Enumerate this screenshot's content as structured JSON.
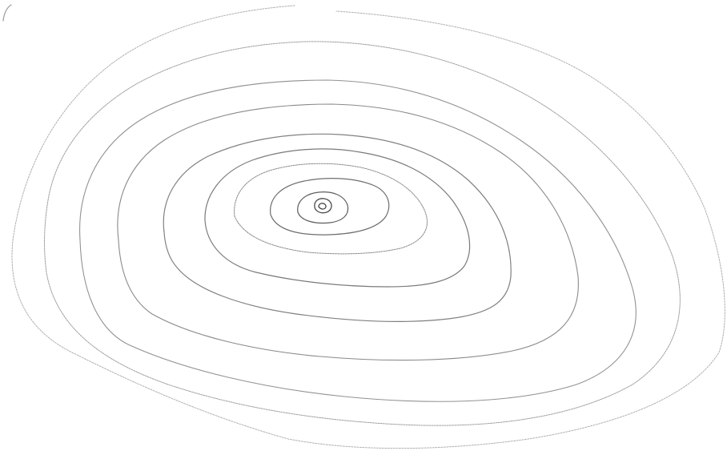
{
  "diagram": {
    "type": "concentric contour lines",
    "labels": [],
    "line_count": 11,
    "colors": {
      "background": "#ffffff",
      "line": "#8a8a8a",
      "line_dark": "#4a4a4a"
    }
  }
}
